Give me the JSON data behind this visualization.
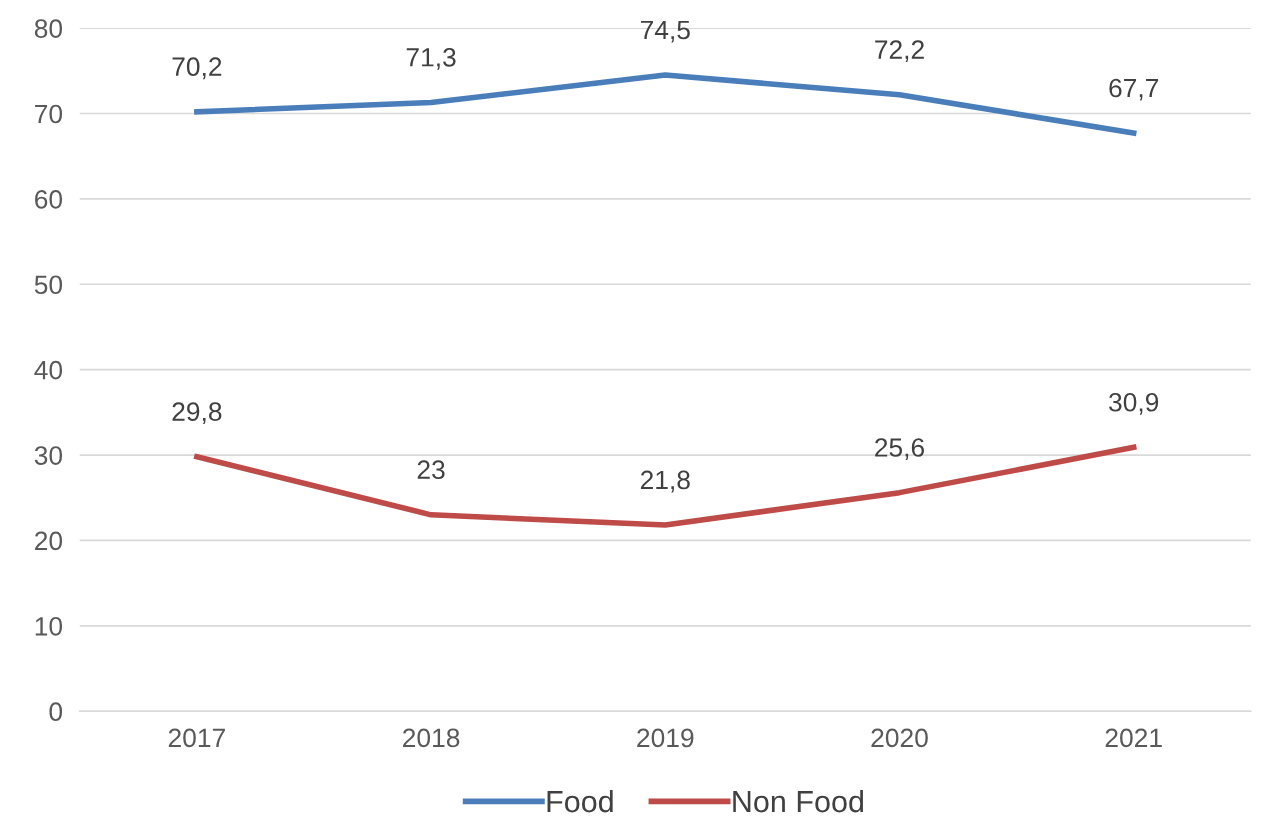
{
  "chart_data": {
    "type": "line",
    "categories": [
      "2017",
      "2018",
      "2019",
      "2020",
      "2021"
    ],
    "series": [
      {
        "name": "Food",
        "color": "#4a7ebb",
        "values": [
          70.2,
          71.3,
          74.5,
          72.2,
          67.7
        ],
        "value_labels": [
          "70,2",
          "71,3",
          "74,5",
          "72,2",
          "67,7"
        ]
      },
      {
        "name": "Non Food",
        "color": "#be4b48",
        "values": [
          29.8,
          23,
          21.8,
          25.6,
          30.9
        ],
        "value_labels": [
          "29,8",
          "23",
          "21,8",
          "25,6",
          "30,9"
        ]
      }
    ],
    "ylim": [
      0,
      80
    ],
    "yticks": [
      0,
      10,
      20,
      30,
      40,
      50,
      60,
      70,
      80
    ],
    "grid": "y",
    "legend": "bottom",
    "marker": "none",
    "line_style": "solid"
  }
}
